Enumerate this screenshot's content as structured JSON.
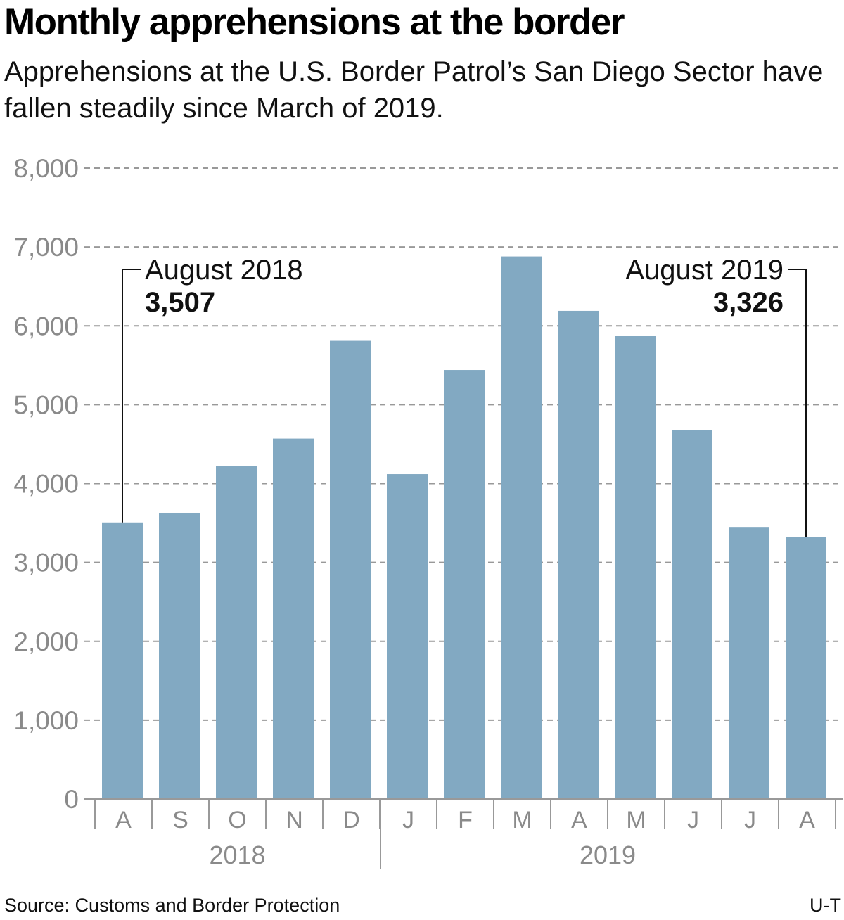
{
  "title": "Monthly apprehensions at the border",
  "subtitle": "Apprehensions at the U.S. Border Patrol’s San Diego Sector have fallen steadily since March of 2019.",
  "source": "Source: Customs and Border Protection",
  "credit": "U-T",
  "colors": {
    "bar": "#82a9c2",
    "grid": "#999999",
    "axis_text": "#8a8a8a",
    "text": "#111111"
  },
  "chart_data": {
    "type": "bar",
    "categories": [
      "A",
      "S",
      "O",
      "N",
      "D",
      "J",
      "F",
      "M",
      "A",
      "M",
      "J",
      "J",
      "A"
    ],
    "year_groups": [
      {
        "label": "2018",
        "count": 5
      },
      {
        "label": "2019",
        "count": 8
      }
    ],
    "values": [
      3507,
      3630,
      4220,
      4570,
      5810,
      4120,
      5440,
      6880,
      6190,
      5870,
      4680,
      3450,
      3326
    ],
    "ylim": [
      0,
      8000
    ],
    "yticks": [
      0,
      1000,
      2000,
      3000,
      4000,
      5000,
      6000,
      7000,
      8000
    ],
    "ytick_labels": [
      "0",
      "1,000",
      "2,000",
      "3,000",
      "4,000",
      "5,000",
      "6,000",
      "7,000",
      "8,000"
    ],
    "grid": true,
    "annotations": [
      {
        "index": 0,
        "label": "August 2018",
        "value_label": "3,507",
        "side": "left"
      },
      {
        "index": 12,
        "label": "August 2019",
        "value_label": "3,326",
        "side": "right"
      }
    ],
    "xlabel": "",
    "ylabel": ""
  }
}
